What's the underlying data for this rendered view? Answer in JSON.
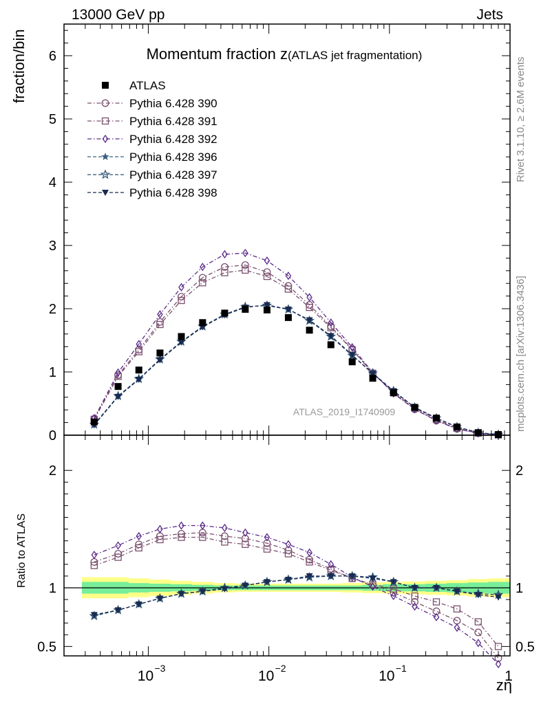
{
  "header": {
    "left": "13000 GeV pp",
    "right": "Jets"
  },
  "side_labels": {
    "rivet": "Rivet 3.1.10, ≥ 2.6M events",
    "mcplots": "mcplots.cern.ch [arXiv:1306.3436]"
  },
  "chart_data": [
    {
      "type": "scatter",
      "title": "Momentum fraction z",
      "subtitle": "(ATLAS jet fragmentation)",
      "ylabel": "fraction/bin",
      "xlabel": "zη",
      "x_scale": "log",
      "xlim": [
        0.0002,
        1
      ],
      "ylim": [
        0,
        6.5
      ],
      "watermark": "ATLAS_2019_I1740909",
      "legend_position": "top-left",
      "x": [
        0.000356,
        0.000562,
        0.000835,
        0.00125,
        0.00188,
        0.00282,
        0.0043,
        0.00637,
        0.00965,
        0.0145,
        0.0217,
        0.0327,
        0.0491,
        0.0727,
        0.108,
        0.162,
        0.245,
        0.363,
        0.545,
        0.8
      ],
      "series": [
        {
          "name": "ATLAS",
          "color": "#000000",
          "marker": "filled-square",
          "line": "none",
          "values": [
            0.21,
            0.77,
            1.03,
            1.3,
            1.56,
            1.78,
            1.93,
            1.99,
            1.98,
            1.86,
            1.66,
            1.43,
            1.16,
            0.9,
            0.67,
            0.44,
            0.27,
            0.13,
            0.04,
            0.01
          ]
        },
        {
          "name": "Pythia 6.428 390",
          "color": "#7a4f6e",
          "marker": "open-circle",
          "line": "dashdot",
          "values": [
            0.26,
            0.95,
            1.35,
            1.79,
            2.19,
            2.49,
            2.66,
            2.69,
            2.58,
            2.36,
            2.06,
            1.72,
            1.36,
            0.98,
            0.67,
            0.41,
            0.23,
            0.1,
            0.03,
            0.005
          ]
        },
        {
          "name": "Pythia 6.428 391",
          "color": "#7a4f6e",
          "marker": "open-square",
          "line": "dashdot",
          "values": [
            0.25,
            0.93,
            1.32,
            1.75,
            2.13,
            2.41,
            2.57,
            2.61,
            2.51,
            2.31,
            2.02,
            1.7,
            1.35,
            0.98,
            0.68,
            0.43,
            0.25,
            0.11,
            0.035,
            0.006
          ]
        },
        {
          "name": "Pythia 6.428 392",
          "color": "#5a2a8a",
          "marker": "open-diamond",
          "line": "dashdot",
          "values": [
            0.27,
            0.99,
            1.44,
            1.91,
            2.34,
            2.66,
            2.86,
            2.88,
            2.76,
            2.52,
            2.18,
            1.78,
            1.39,
            0.99,
            0.66,
            0.41,
            0.23,
            0.1,
            0.03,
            0.005
          ]
        },
        {
          "name": "Pythia 6.428 396",
          "color": "#3a6080",
          "marker": "filled-star",
          "line": "dashed",
          "values": [
            0.17,
            0.62,
            0.89,
            1.2,
            1.48,
            1.72,
            1.91,
            2.03,
            2.05,
            1.99,
            1.81,
            1.56,
            1.26,
            0.98,
            0.7,
            0.44,
            0.27,
            0.13,
            0.04,
            0.01
          ]
        },
        {
          "name": "Pythia 6.428 397",
          "color": "#2a5070",
          "marker": "open-star",
          "line": "dashed",
          "values": [
            0.17,
            0.62,
            0.89,
            1.2,
            1.48,
            1.72,
            1.91,
            2.03,
            2.05,
            1.99,
            1.81,
            1.56,
            1.26,
            0.98,
            0.7,
            0.44,
            0.27,
            0.13,
            0.04,
            0.01
          ]
        },
        {
          "name": "Pythia 6.428 398",
          "color": "#1a2a50",
          "marker": "filled-triangle-down",
          "line": "dashed",
          "values": [
            0.16,
            0.61,
            0.88,
            1.19,
            1.47,
            1.71,
            1.9,
            2.02,
            2.06,
            1.99,
            1.82,
            1.57,
            1.27,
            0.97,
            0.7,
            0.44,
            0.27,
            0.13,
            0.04,
            0.01
          ]
        }
      ]
    },
    {
      "type": "scatter",
      "ylabel": "Ratio to ATLAS",
      "xlabel": "zη",
      "x_scale": "log",
      "xlim": [
        0.0002,
        1
      ],
      "ylim": [
        0.42,
        2.3
      ],
      "reference_line": 1,
      "x": [
        0.000356,
        0.000562,
        0.000835,
        0.00125,
        0.00188,
        0.00282,
        0.0043,
        0.00637,
        0.00965,
        0.0145,
        0.0217,
        0.0327,
        0.0491,
        0.0727,
        0.108,
        0.162,
        0.245,
        0.363,
        0.545,
        0.8
      ],
      "band_inner": [
        0.05,
        0.05,
        0.04,
        0.035,
        0.03,
        0.025,
        0.02,
        0.02,
        0.02,
        0.02,
        0.02,
        0.02,
        0.02,
        0.025,
        0.03,
        0.03,
        0.035,
        0.04,
        0.045,
        0.05
      ],
      "band_outer": [
        0.09,
        0.09,
        0.08,
        0.07,
        0.06,
        0.05,
        0.04,
        0.035,
        0.035,
        0.035,
        0.035,
        0.035,
        0.04,
        0.045,
        0.05,
        0.055,
        0.06,
        0.065,
        0.075,
        0.08
      ],
      "series": [
        {
          "name": "Pythia 6.428 390",
          "values": [
            1.22,
            1.29,
            1.37,
            1.44,
            1.46,
            1.47,
            1.44,
            1.42,
            1.38,
            1.32,
            1.24,
            1.16,
            1.08,
            1.02,
            0.96,
            0.88,
            0.8,
            0.72,
            0.62,
            0.4
          ]
        },
        {
          "name": "Pythia 6.428 391",
          "values": [
            1.19,
            1.26,
            1.34,
            1.41,
            1.43,
            1.43,
            1.39,
            1.37,
            1.33,
            1.29,
            1.22,
            1.15,
            1.08,
            1.03,
            0.99,
            0.93,
            0.88,
            0.82,
            0.71,
            0.5
          ]
        },
        {
          "name": "Pythia 6.428 392",
          "values": [
            1.28,
            1.36,
            1.44,
            1.5,
            1.53,
            1.53,
            1.51,
            1.47,
            1.43,
            1.37,
            1.3,
            1.2,
            1.09,
            1.01,
            0.93,
            0.84,
            0.75,
            0.66,
            0.53,
            0.35
          ]
        },
        {
          "name": "Pythia 6.428 396",
          "values": [
            0.76,
            0.81,
            0.86,
            0.91,
            0.95,
            0.97,
            1.0,
            1.02,
            1.05,
            1.07,
            1.09,
            1.1,
            1.1,
            1.09,
            1.05,
            1.0,
            1.0,
            0.97,
            0.95,
            0.94
          ]
        },
        {
          "name": "Pythia 6.428 397",
          "values": [
            0.76,
            0.81,
            0.86,
            0.91,
            0.95,
            0.97,
            1.0,
            1.02,
            1.05,
            1.07,
            1.09,
            1.1,
            1.1,
            1.09,
            1.05,
            1.0,
            1.0,
            0.97,
            0.95,
            0.94
          ]
        },
        {
          "name": "Pythia 6.428 398",
          "values": [
            0.77,
            0.81,
            0.86,
            0.91,
            0.95,
            0.97,
            0.99,
            1.02,
            1.05,
            1.07,
            1.1,
            1.1,
            1.1,
            1.08,
            1.05,
            1.0,
            1.0,
            0.97,
            0.94,
            0.92
          ]
        }
      ]
    }
  ],
  "axis_ticks": {
    "top_y": [
      "0",
      "1",
      "2",
      "3",
      "4",
      "5",
      "6"
    ],
    "bottom_y": [
      "0.5",
      "1",
      "2"
    ],
    "x": [
      "10",
      "−3",
      "10",
      "−2",
      "10",
      "−1",
      "1"
    ]
  }
}
